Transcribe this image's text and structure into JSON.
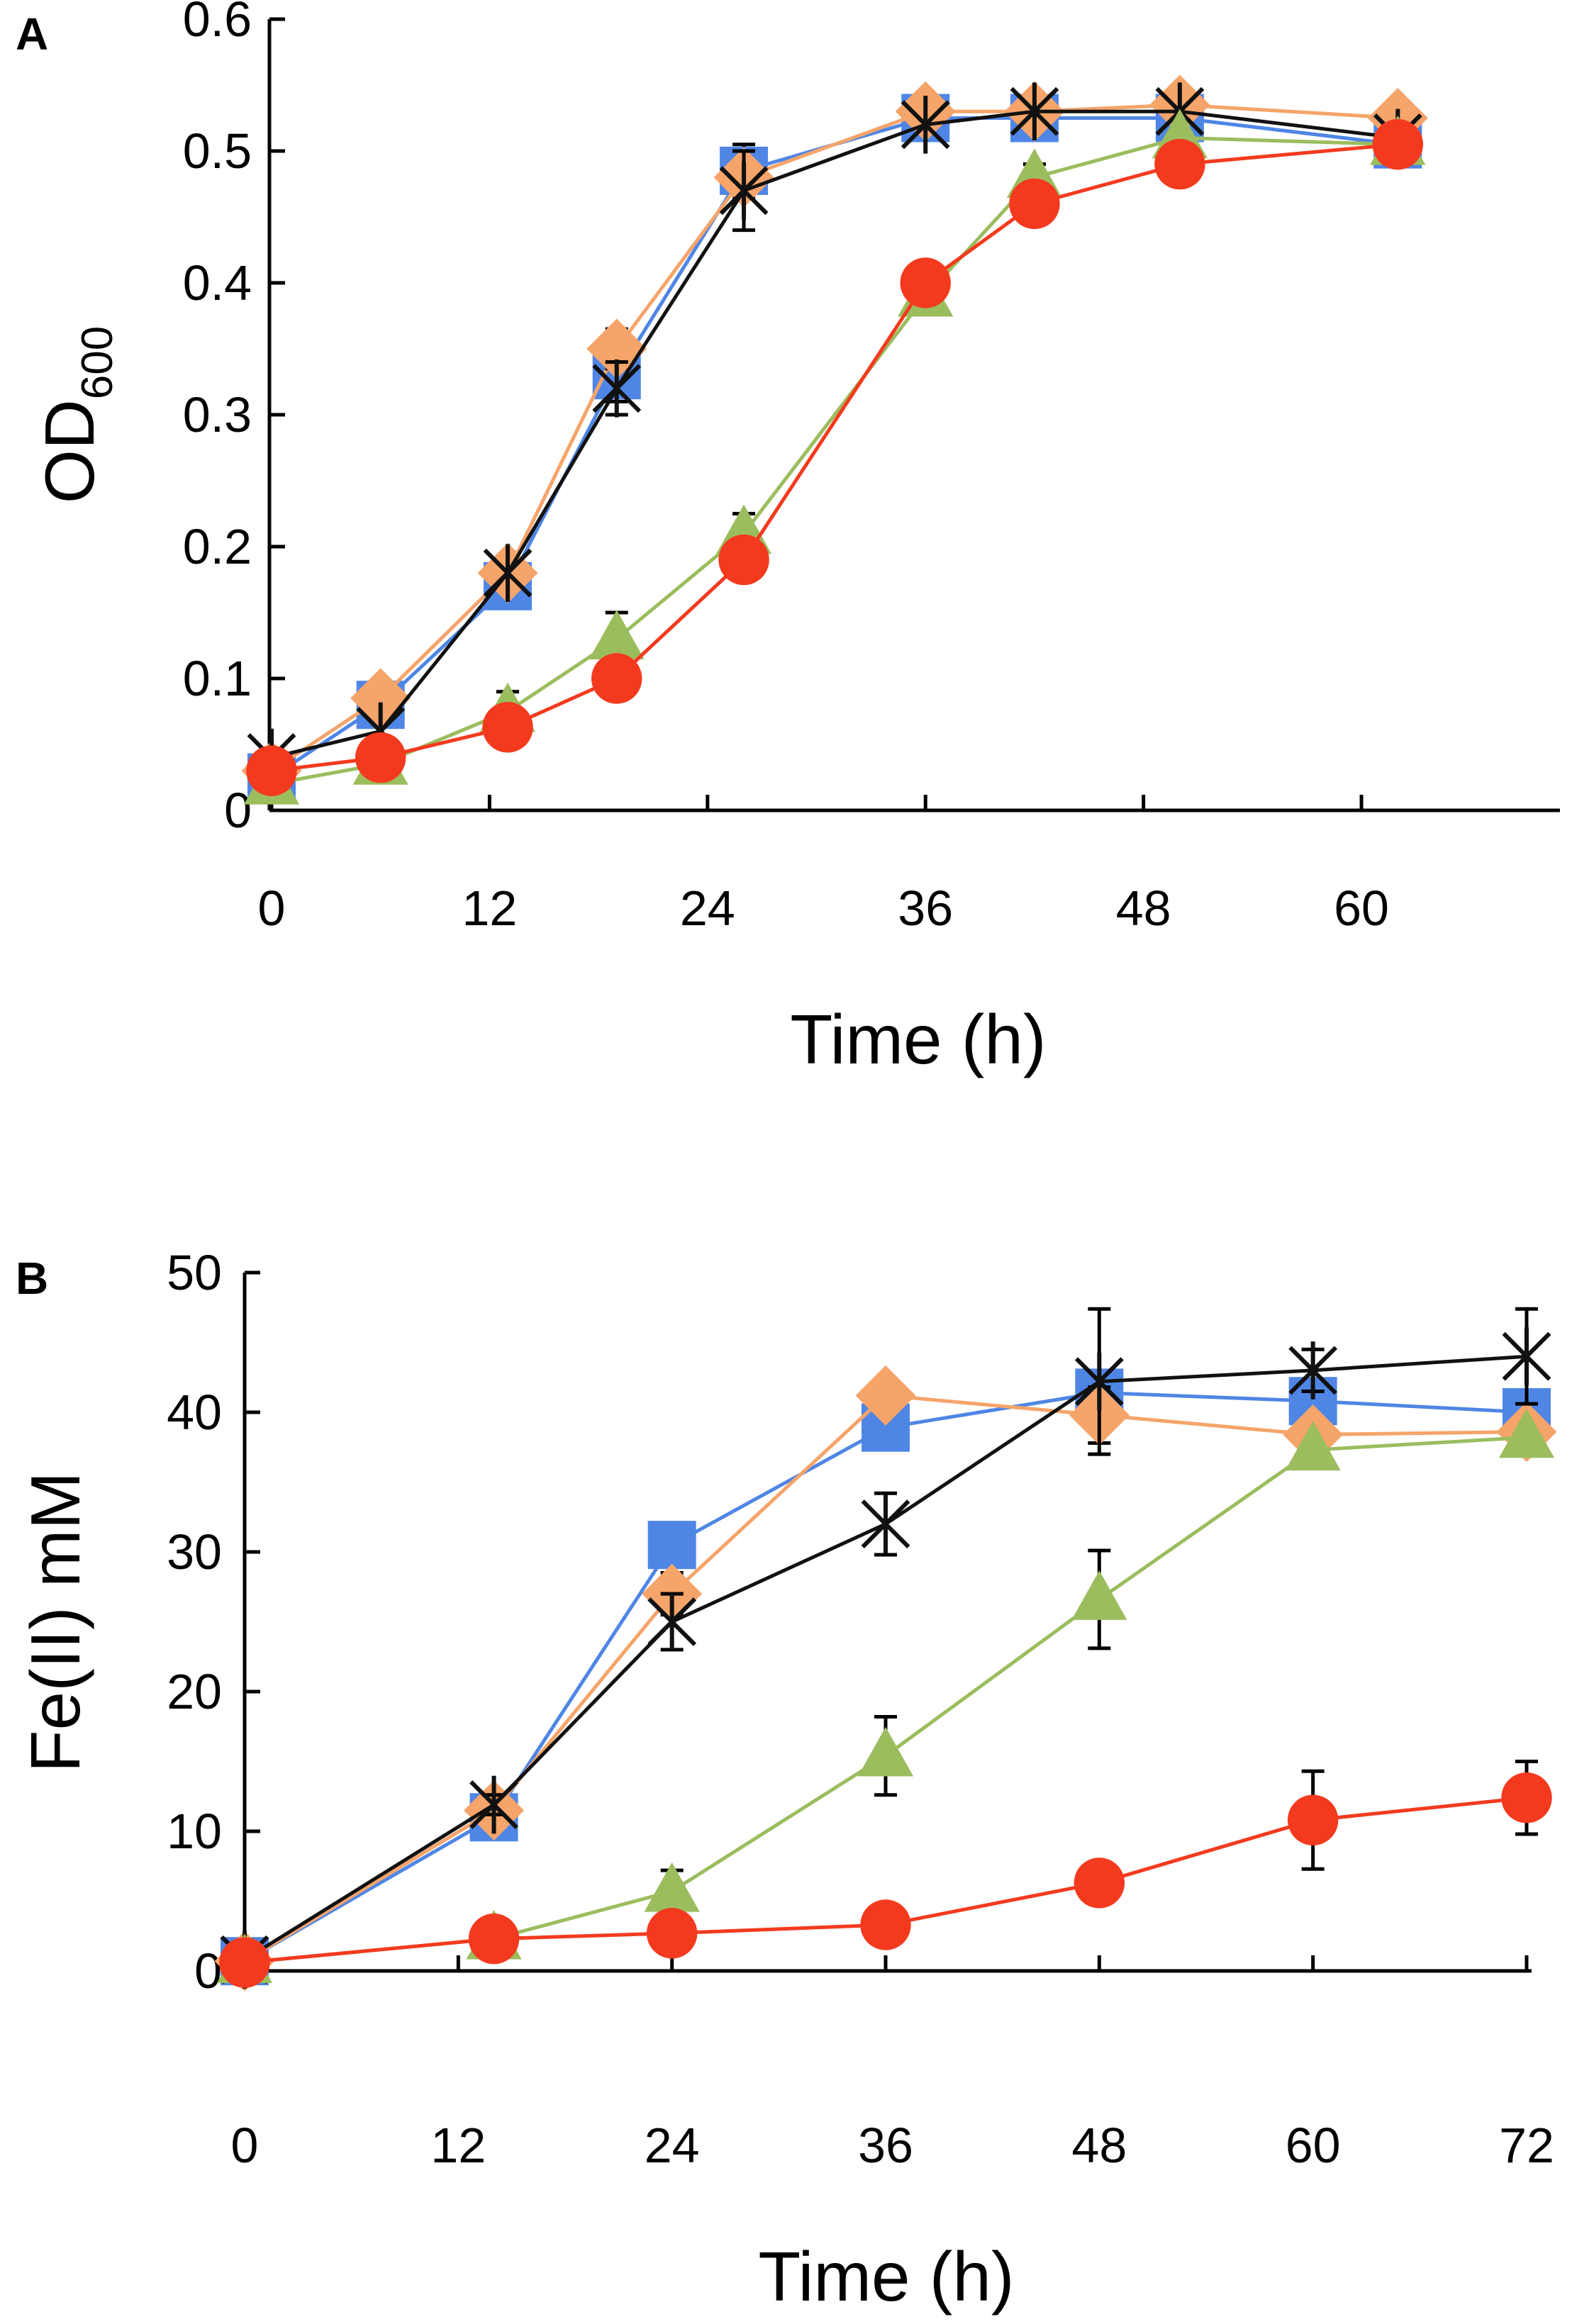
{
  "colors": {
    "blue": "#4f86e5",
    "orange": "#f5a46a",
    "black": "#111111",
    "green": "#9bbd5e",
    "red": "#f43a1e"
  },
  "chart_data": [
    {
      "type": "line",
      "panel_label": "A",
      "title": "",
      "xlabel": "Time (h)",
      "ylabel_main": "OD",
      "ylabel_subscript": "600",
      "xlim": [
        0,
        68
      ],
      "ylim": [
        0,
        0.6
      ],
      "xticks": [
        0,
        12,
        24,
        36,
        48,
        60
      ],
      "xtick_labels": [
        "0",
        "12",
        "24",
        "36",
        "48",
        "60"
      ],
      "yticks": [
        0,
        0.1,
        0.2,
        0.3,
        0.4,
        0.5,
        0.6
      ],
      "ytick_labels": [
        "0",
        "0.1",
        "0.2",
        "0.3",
        "0.4",
        "0.5",
        "0.6"
      ],
      "grid": false,
      "series": [
        {
          "name": "blue squares",
          "marker": "square",
          "color": "#4f86e5",
          "x": [
            0,
            6,
            13,
            19,
            26,
            36,
            42,
            50,
            62
          ],
          "y": [
            0.025,
            0.08,
            0.17,
            0.33,
            0.485,
            0.525,
            0.525,
            0.525,
            0.505
          ],
          "err": [
            0,
            0,
            0,
            0.02,
            0.02,
            0,
            0,
            0,
            0
          ]
        },
        {
          "name": "orange diamonds",
          "marker": "diamond",
          "color": "#f5a46a",
          "x": [
            0,
            6,
            13,
            19,
            26,
            36,
            42,
            50,
            62
          ],
          "y": [
            0.03,
            0.085,
            0.18,
            0.35,
            0.48,
            0.53,
            0.53,
            0.535,
            0.525
          ],
          "err": [
            0,
            0,
            0,
            0.015,
            0,
            0,
            0,
            0,
            0
          ]
        },
        {
          "name": "black crosses",
          "marker": "asterisk",
          "color": "#111111",
          "x": [
            0,
            6,
            13,
            19,
            26,
            36,
            42,
            50,
            62
          ],
          "y": [
            0.04,
            0.06,
            0.18,
            0.32,
            0.47,
            0.52,
            0.53,
            0.53,
            0.51
          ],
          "err": [
            0,
            0,
            0,
            0.02,
            0.03,
            0,
            0,
            0,
            0
          ]
        },
        {
          "name": "green triangles",
          "marker": "triangle",
          "color": "#9bbd5e",
          "x": [
            0,
            6,
            13,
            19,
            26,
            36,
            42,
            50,
            62
          ],
          "y": [
            0.02,
            0.035,
            0.075,
            0.13,
            0.21,
            0.39,
            0.48,
            0.51,
            0.505
          ],
          "err": [
            0,
            0,
            0.015,
            0.02,
            0.015,
            0,
            0.01,
            0,
            0
          ]
        },
        {
          "name": "red circles",
          "marker": "circle",
          "color": "#f43a1e",
          "x": [
            0,
            6,
            13,
            19,
            26,
            36,
            42,
            50,
            62
          ],
          "y": [
            0.03,
            0.04,
            0.063,
            0.1,
            0.19,
            0.4,
            0.46,
            0.49,
            0.505
          ],
          "err": [
            0,
            0,
            0,
            0,
            0,
            0,
            0,
            0,
            0
          ]
        }
      ]
    },
    {
      "type": "line",
      "panel_label": "B",
      "title": "",
      "xlabel": "Time (h)",
      "ylabel_main": "Fe(II) mM",
      "ylabel_subscript": "",
      "xlim": [
        0,
        72
      ],
      "ylim": [
        0,
        50
      ],
      "xticks": [
        0,
        12,
        24,
        36,
        48,
        60,
        72
      ],
      "xtick_labels": [
        "0",
        "12",
        "24",
        "36",
        "48",
        "60",
        "72"
      ],
      "yticks": [
        0,
        10,
        20,
        30,
        40,
        50
      ],
      "ytick_labels": [
        "0",
        "10",
        "20",
        "30",
        "40",
        "50"
      ],
      "grid": false,
      "series": [
        {
          "name": "blue squares",
          "marker": "square",
          "color": "#4f86e5",
          "x": [
            0,
            14,
            24,
            36,
            48,
            60,
            72
          ],
          "y": [
            0.7,
            11,
            30.5,
            38.9,
            41.4,
            40.8,
            40
          ],
          "err": [
            0,
            0,
            1.5,
            1.5,
            0,
            0,
            0
          ]
        },
        {
          "name": "orange diamonds",
          "marker": "diamond",
          "color": "#f5a46a",
          "x": [
            0,
            14,
            24,
            36,
            48,
            60,
            72
          ],
          "y": [
            0.7,
            11.5,
            27,
            41.2,
            39.8,
            38.4,
            38.6
          ],
          "err": [
            0,
            0,
            1.5,
            0,
            2,
            0,
            0
          ]
        },
        {
          "name": "black crosses",
          "marker": "asterisk",
          "color": "#111111",
          "x": [
            0,
            14,
            24,
            36,
            48,
            60,
            72
          ],
          "y": [
            0.8,
            11.9,
            25,
            32,
            42.2,
            43,
            44
          ],
          "err": [
            0,
            0.7,
            2,
            2.2,
            5.2,
            1.5,
            3.4
          ]
        },
        {
          "name": "green triangles",
          "marker": "triangle",
          "color": "#9bbd5e",
          "x": [
            0,
            14,
            24,
            36,
            48,
            60,
            72
          ],
          "y": [
            0.6,
            2.3,
            5.7,
            15.4,
            26.6,
            37.3,
            38.2
          ],
          "err": [
            0,
            0,
            1.5,
            2.8,
            3.5,
            0,
            0
          ]
        },
        {
          "name": "red circles",
          "marker": "circle",
          "color": "#f43a1e",
          "x": [
            0,
            14,
            24,
            36,
            48,
            60,
            72
          ],
          "y": [
            0.6,
            2.3,
            2.7,
            3.3,
            6.3,
            10.8,
            12.4
          ],
          "err": [
            0,
            0,
            0,
            0,
            0,
            3.5,
            2.6
          ]
        }
      ]
    }
  ]
}
